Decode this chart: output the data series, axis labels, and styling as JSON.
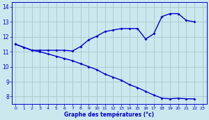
{
  "xlabel": "Graphe des températures (°c)",
  "bg_color": "#cce8ef",
  "grid_color": "#aacccc",
  "line_color": "#0000cc",
  "xlim": [
    -0.5,
    23.5
  ],
  "ylim": [
    7.5,
    14.3
  ],
  "yticks": [
    8,
    9,
    10,
    11,
    12,
    13,
    14
  ],
  "xticks": [
    0,
    1,
    2,
    3,
    4,
    5,
    6,
    7,
    8,
    9,
    10,
    11,
    12,
    13,
    14,
    15,
    16,
    17,
    18,
    19,
    20,
    21,
    22,
    23
  ],
  "upper_x": [
    0,
    1,
    2,
    3,
    4,
    5,
    6,
    7,
    8,
    9,
    10,
    11,
    12,
    13,
    14,
    15,
    16,
    17,
    18,
    19,
    20,
    21,
    22
  ],
  "upper_y": [
    11.5,
    11.3,
    11.1,
    11.1,
    11.1,
    11.1,
    11.1,
    11.05,
    11.35,
    11.8,
    12.05,
    12.35,
    12.45,
    12.55,
    12.55,
    12.55,
    11.85,
    12.2,
    13.35,
    13.55,
    13.55,
    13.1,
    13.0
  ],
  "lower_x": [
    0,
    1,
    2,
    3,
    4,
    5,
    6,
    7,
    8,
    9,
    10,
    11,
    12,
    13,
    14,
    15,
    16,
    17,
    18,
    19,
    20,
    21,
    22
  ],
  "lower_y": [
    11.5,
    11.3,
    11.1,
    11.0,
    10.85,
    10.7,
    10.55,
    10.4,
    10.2,
    10.0,
    9.8,
    9.5,
    9.3,
    9.1,
    8.8,
    8.6,
    8.35,
    8.1,
    7.9,
    7.85,
    7.9,
    7.85,
    7.85
  ]
}
